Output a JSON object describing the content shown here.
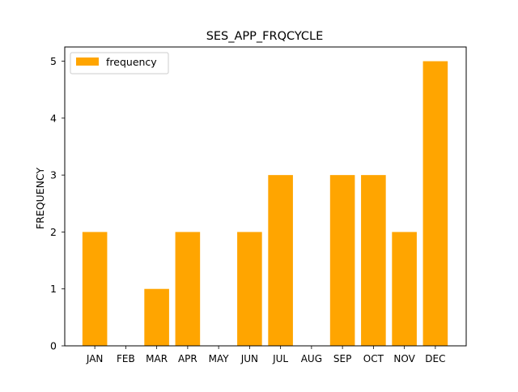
{
  "chart_data": {
    "type": "bar",
    "title": "SES_APP_FRQCYCLE",
    "xlabel": "",
    "ylabel": "FREQUENCY",
    "categories": [
      "JAN",
      "FEB",
      "MAR",
      "APR",
      "MAY",
      "JUN",
      "JUL",
      "AUG",
      "SEP",
      "OCT",
      "NOV",
      "DEC"
    ],
    "series": [
      {
        "name": "frequency",
        "values": [
          2,
          0,
          1,
          2,
          0,
          2,
          3,
          0,
          3,
          3,
          2,
          5
        ],
        "color": "#ffa500"
      }
    ],
    "ylim": [
      0,
      5.25
    ],
    "yticks": [
      0,
      1,
      2,
      3,
      4,
      5
    ],
    "grid": false,
    "legend_position": "upper-left"
  }
}
